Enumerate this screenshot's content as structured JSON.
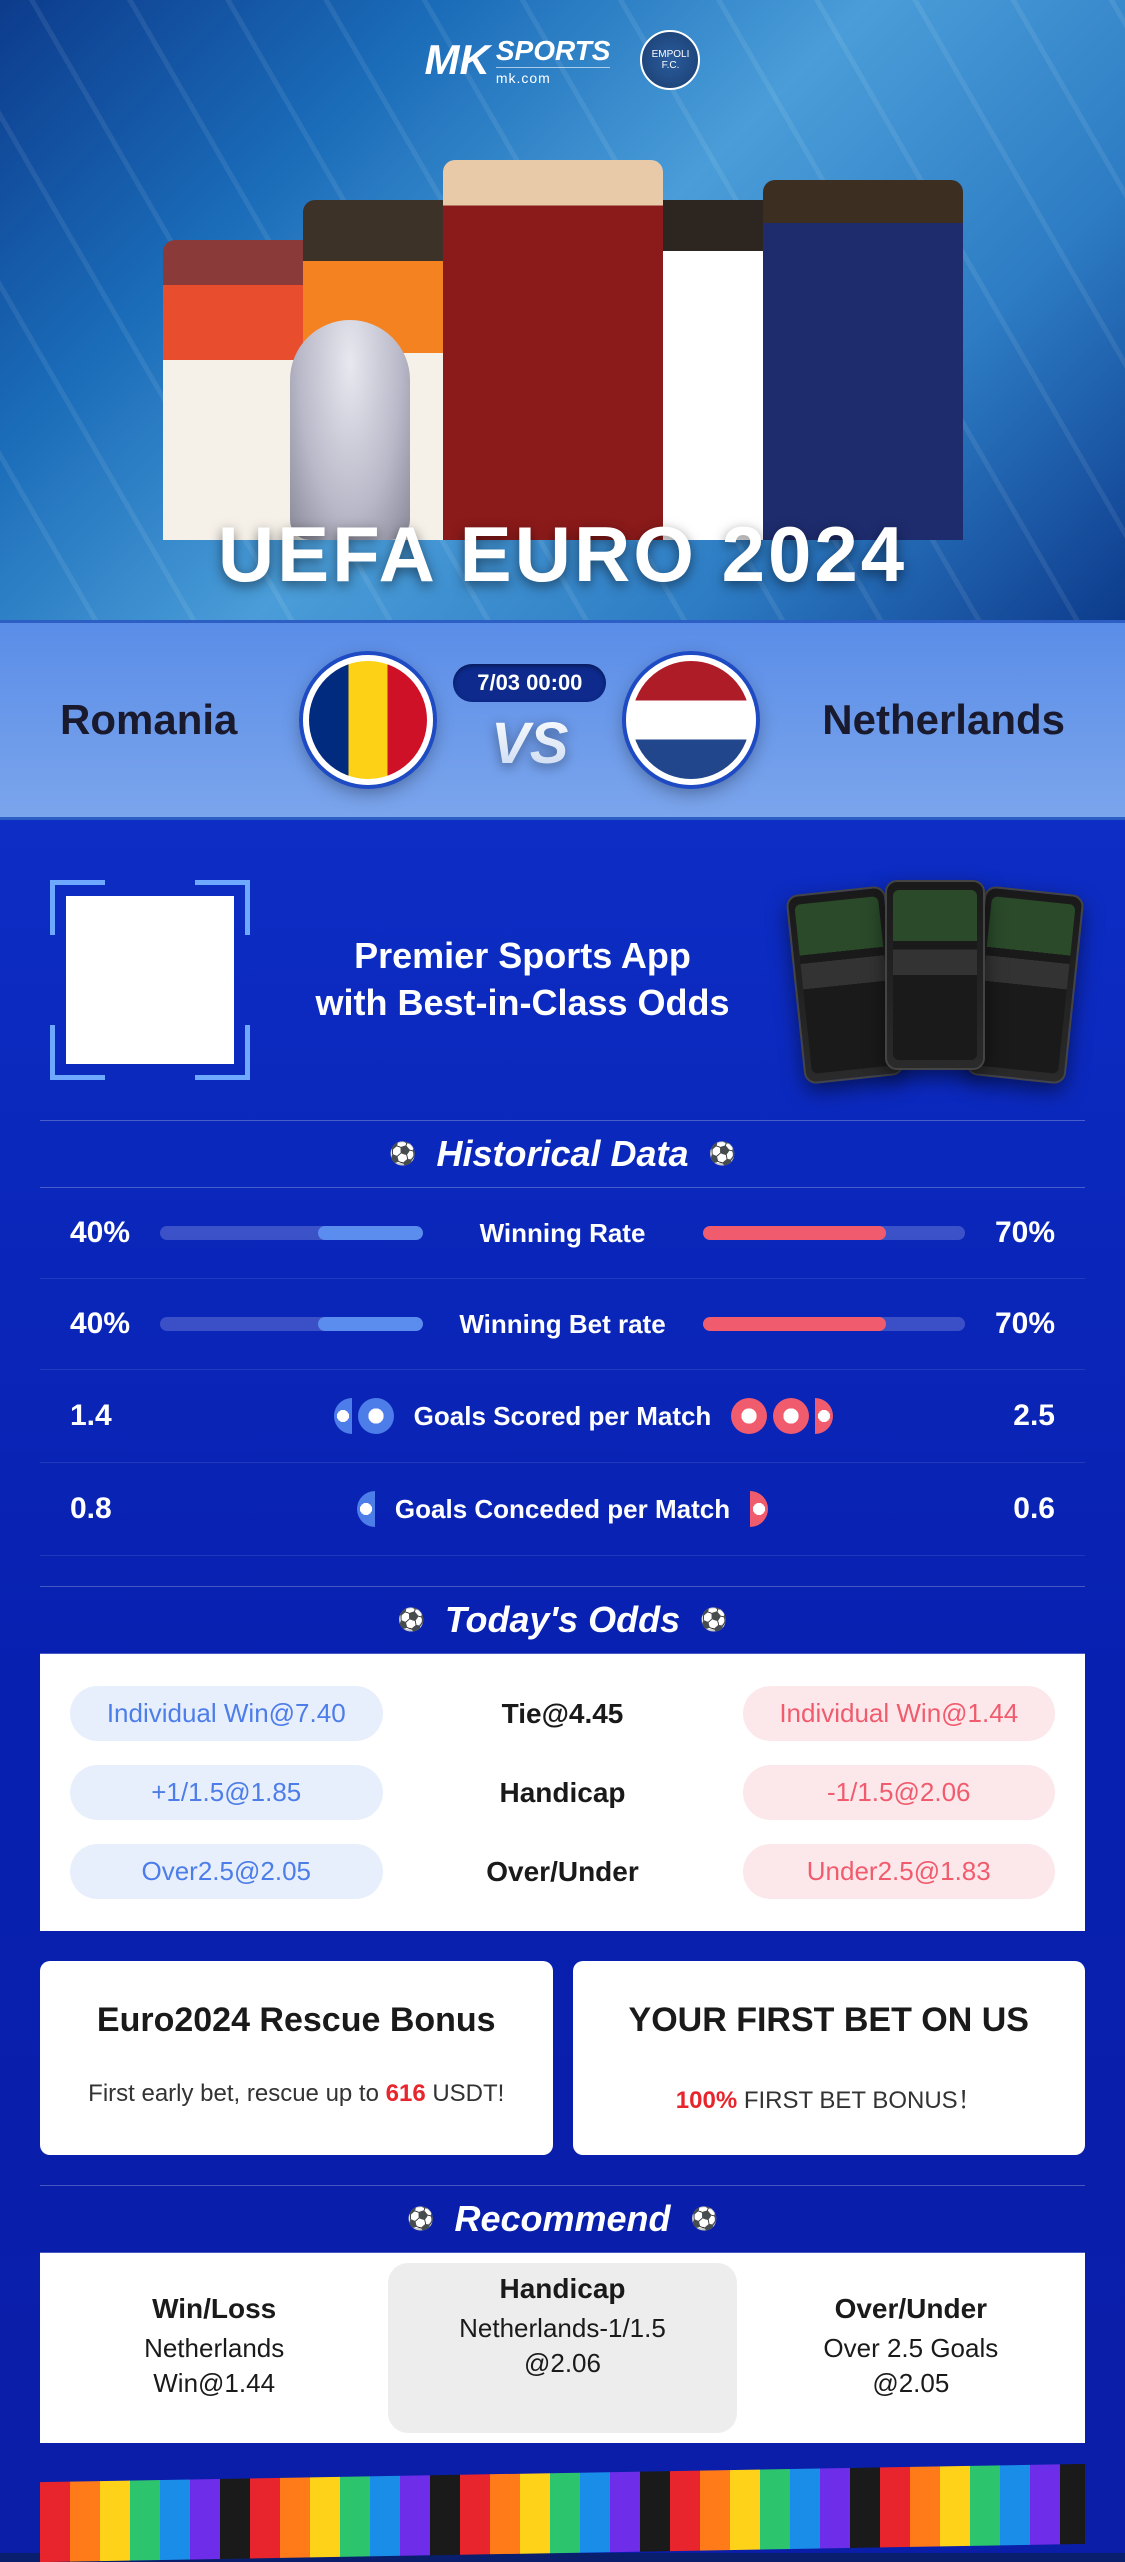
{
  "brand": {
    "mk": "MK",
    "sports": "SPORTS",
    "domain": "mk.com",
    "club": "EMPOLI F.C."
  },
  "hero": {
    "title": "UEFA EURO 2024"
  },
  "match": {
    "team_a": "Romania",
    "team_b": "Netherlands",
    "datetime": "7/03 00:00",
    "vs": "VS",
    "flag_a_colors": [
      "#002b7f",
      "#fcd116",
      "#ce1126"
    ],
    "flag_b_colors": [
      "#ae1c28",
      "#ffffff",
      "#21468b"
    ]
  },
  "promo": {
    "line1": "Premier Sports App",
    "line2": "with Best-in-Class Odds"
  },
  "historical": {
    "title": "Historical Data",
    "rows": [
      {
        "type": "bar",
        "label": "Winning Rate",
        "left_val": "40%",
        "right_val": "70%",
        "left_pct": 40,
        "right_pct": 70
      },
      {
        "type": "bar",
        "label": "Winning Bet rate",
        "left_val": "40%",
        "right_val": "70%",
        "left_pct": 40,
        "right_pct": 70
      },
      {
        "type": "balls",
        "label": "Goals Scored per Match",
        "left_val": "1.4",
        "right_val": "2.5",
        "left_balls": 1.4,
        "right_balls": 2.5
      },
      {
        "type": "balls",
        "label": "Goals Conceded per Match",
        "left_val": "0.8",
        "right_val": "0.6",
        "left_balls": 0.8,
        "right_balls": 0.6
      }
    ],
    "colors": {
      "blue": "#5b8def",
      "red": "#f05c6e",
      "track": "rgba(255,255,255,0.2)"
    }
  },
  "odds": {
    "title": "Today's Odds",
    "rows": [
      {
        "left": "Individual Win@7.40",
        "mid": "Tie@4.45",
        "right": "Individual Win@1.44"
      },
      {
        "left": "+1/1.5@1.85",
        "mid": "Handicap",
        "right": "-1/1.5@2.06"
      },
      {
        "left": "Over2.5@2.05",
        "mid": "Over/Under",
        "right": "Under2.5@1.83"
      }
    ],
    "pill_colors": {
      "blue_bg": "#e8effc",
      "blue_text": "#4d7de8",
      "red_bg": "#fce8ea",
      "red_text": "#f05c6e"
    }
  },
  "bonus": [
    {
      "title": "Euro2024 Rescue Bonus",
      "text_pre": "First early bet, rescue up to ",
      "hl": "616",
      "text_post": " USDT!"
    },
    {
      "title": "YOUR FIRST BET ON US",
      "text_pre": "",
      "hl": "100%",
      "text_post": " FIRST BET BONUS！"
    }
  ],
  "recommend": {
    "title": "Recommend",
    "cols": [
      {
        "head": "Win/Loss",
        "l1": "Netherlands",
        "l2": "Win@1.44"
      },
      {
        "head": "Handicap",
        "l1": "Netherlands-1/1.5",
        "l2": "@2.06"
      },
      {
        "head": "Over/Under",
        "l1": "Over 2.5 Goals",
        "l2": "@2.05"
      }
    ]
  },
  "theme": {
    "bg": "#0d2dc4",
    "accent": "#ffffff"
  }
}
